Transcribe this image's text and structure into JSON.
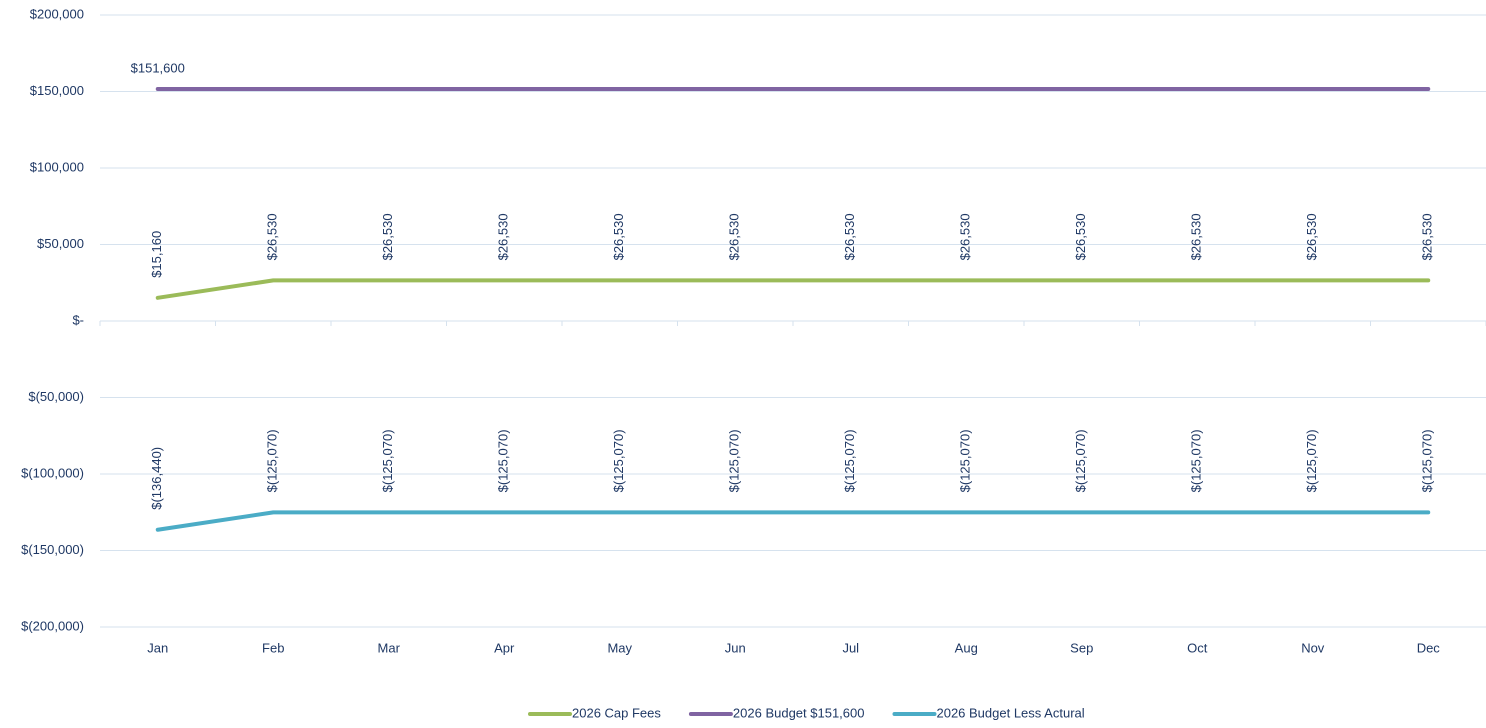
{
  "chart_data": {
    "type": "line",
    "categories": [
      "Jan",
      "Feb",
      "Mar",
      "Apr",
      "May",
      "Jun",
      "Jul",
      "Aug",
      "Sep",
      "Oct",
      "Nov",
      "Dec"
    ],
    "series": [
      {
        "name": "2026 Cap Fees",
        "color": "#9bbb59",
        "values": [
          15160,
          26530,
          26530,
          26530,
          26530,
          26530,
          26530,
          26530,
          26530,
          26530,
          26530,
          26530
        ],
        "value_labels": [
          "$15,160",
          "$26,530",
          "$26,530",
          "$26,530",
          "$26,530",
          "$26,530",
          "$26,530",
          "$26,530",
          "$26,530",
          "$26,530",
          "$26,530",
          "$26,530"
        ]
      },
      {
        "name": "2026 Budget $151,600",
        "color": "#8064a2",
        "values": [
          151600,
          151600,
          151600,
          151600,
          151600,
          151600,
          151600,
          151600,
          151600,
          151600,
          151600,
          151600
        ],
        "value_labels": [
          "$151,600",
          null,
          null,
          null,
          null,
          null,
          null,
          null,
          null,
          null,
          null,
          null
        ]
      },
      {
        "name": "2026 Budget Less Actural",
        "color": "#4bacc6",
        "values": [
          -136440,
          -125070,
          -125070,
          -125070,
          -125070,
          -125070,
          -125070,
          -125070,
          -125070,
          -125070,
          -125070,
          -125070
        ],
        "value_labels": [
          "$(136,440)",
          "$(125,070)",
          "$(125,070)",
          "$(125,070)",
          "$(125,070)",
          "$(125,070)",
          "$(125,070)",
          "$(125,070)",
          "$(125,070)",
          "$(125,070)",
          "$(125,070)",
          "$(125,070)"
        ]
      }
    ],
    "ylim": [
      -200000,
      200000
    ],
    "yticks": [
      {
        "value": -200000,
        "label": "$(200,000)"
      },
      {
        "value": -150000,
        "label": "$(150,000)"
      },
      {
        "value": -100000,
        "label": "$(100,000)"
      },
      {
        "value": -50000,
        "label": "$(50,000)"
      },
      {
        "value": 0,
        "label": "$-"
      },
      {
        "value": 50000,
        "label": "$50,000"
      },
      {
        "value": 100000,
        "label": "$100,000"
      },
      {
        "value": 150000,
        "label": "$150,000"
      },
      {
        "value": 200000,
        "label": "$200,000"
      }
    ],
    "grid": true,
    "legend": "bottom"
  }
}
